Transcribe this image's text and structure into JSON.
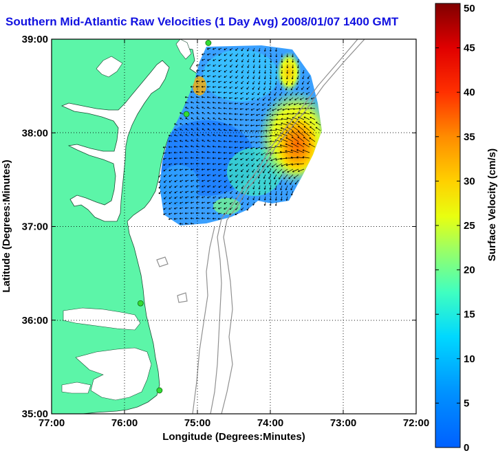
{
  "title": "Southern Mid-Atlantic Raw Velocities (1 Day Avg) 2008/01/07 1400 GMT",
  "x_axis": {
    "label": "Longitude (Degrees:Minutes)",
    "ticks": [
      {
        "value": -77,
        "label": "77:00"
      },
      {
        "value": -76,
        "label": "76:00"
      },
      {
        "value": -75,
        "label": "75:00"
      },
      {
        "value": -74,
        "label": "74:00"
      },
      {
        "value": -73,
        "label": "73:00"
      },
      {
        "value": -72,
        "label": "72:00"
      }
    ],
    "range": [
      -77,
      -72
    ]
  },
  "y_axis": {
    "label": "Latitude (Degrees:Minutes)",
    "ticks": [
      {
        "value": 35,
        "label": "35:00"
      },
      {
        "value": 36,
        "label": "36:00"
      },
      {
        "value": 37,
        "label": "37:00"
      },
      {
        "value": 38,
        "label": "38:00"
      },
      {
        "value": 39,
        "label": "39:00"
      }
    ],
    "range": [
      35,
      39
    ]
  },
  "colorbar": {
    "label": "Surface Velocity (cm/s)",
    "ticks": [
      {
        "value": 0,
        "label": "0"
      },
      {
        "value": 5,
        "label": "5"
      },
      {
        "value": 10,
        "label": "10"
      },
      {
        "value": 15,
        "label": "15"
      },
      {
        "value": 20,
        "label": "20"
      },
      {
        "value": 25,
        "label": "25"
      },
      {
        "value": 30,
        "label": "30"
      },
      {
        "value": 35,
        "label": "35"
      },
      {
        "value": 40,
        "label": "40"
      },
      {
        "value": 45,
        "label": "45"
      },
      {
        "value": 50,
        "label": "50"
      }
    ],
    "range": [
      0,
      50
    ],
    "colormap": "jet"
  },
  "grid": "dotted",
  "colors": {
    "land": "#5cf5a8",
    "title": "#1010e0",
    "isobath": "#909090",
    "station": "#33dd33"
  },
  "stations": [
    {
      "lon": -74.85,
      "lat": 38.96
    },
    {
      "lon": -75.15,
      "lat": 38.2
    },
    {
      "lon": -75.78,
      "lat": 36.18
    },
    {
      "lon": -75.52,
      "lat": 35.25
    }
  ]
}
